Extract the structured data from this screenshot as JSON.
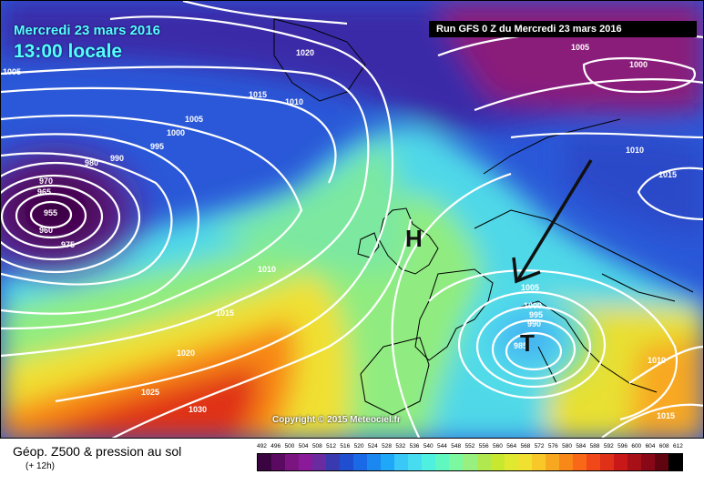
{
  "header": {
    "date": "Mercredi 23 mars 2016",
    "time": "13:00 locale",
    "run": "Run GFS 0 Z du Mercredi 23 mars 2016"
  },
  "copyright": "Copyright © 2015 Meteociel.fr",
  "footer": {
    "title": "Géop. Z500 & pression au sol",
    "subtitle": "(+ 12h)",
    "scale_ticks": [
      "492",
      "496",
      "500",
      "504",
      "508",
      "512",
      "516",
      "520",
      "524",
      "528",
      "532",
      "536",
      "540",
      "544",
      "548",
      "552",
      "556",
      "560",
      "564",
      "568",
      "572",
      "576",
      "580",
      "584",
      "588",
      "592",
      "596",
      "600",
      "604",
      "608",
      "612"
    ],
    "scale_colors": [
      "#3a0440",
      "#5a0a60",
      "#7b1480",
      "#8a1a9a",
      "#6a2aa0",
      "#3a3ab0",
      "#1f4fd0",
      "#1a6ae8",
      "#1a88f0",
      "#20a8f8",
      "#3ac8f8",
      "#48dcf0",
      "#50f0e0",
      "#60f8c0",
      "#7cf8a0",
      "#98f080",
      "#b0e850",
      "#c8e830",
      "#e0e830",
      "#f0e030",
      "#f8c828",
      "#f8a820",
      "#f88818",
      "#f86818",
      "#f04818",
      "#e03018",
      "#c81818",
      "#a81018",
      "#880818",
      "#600410",
      "#000000"
    ]
  },
  "map": {
    "symbols": {
      "high": "H",
      "low": "T"
    },
    "isobar_labels": [
      "1020",
      "1015",
      "1010",
      "1005",
      "1000",
      "995",
      "990",
      "980",
      "970",
      "965",
      "955",
      "960",
      "975",
      "1010",
      "1015",
      "1020",
      "1025",
      "1030",
      "1005",
      "1000",
      "995",
      "990",
      "985",
      "1005",
      "1000",
      "1010",
      "1015",
      "1010",
      "1015",
      "1005"
    ]
  }
}
